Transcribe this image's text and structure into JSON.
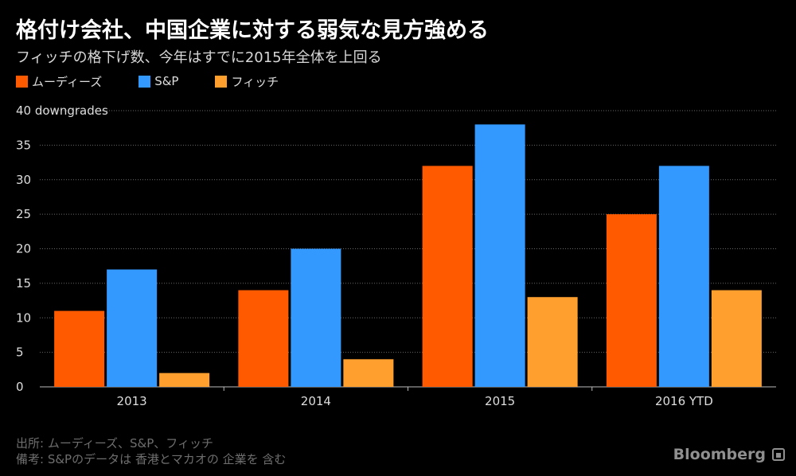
{
  "header": {
    "title": "格付け会社、中国企業に対する弱気な見方強める",
    "subtitle": "フィッチの格下げ数、今年はすでに2015年全体を上回る"
  },
  "legend": [
    {
      "label": "ムーディーズ",
      "color": "#ff5a00"
    },
    {
      "label": "S&P",
      "color": "#3399ff"
    },
    {
      "label": "フィッチ",
      "color": "#ff9f2e"
    }
  ],
  "chart_data": {
    "type": "bar",
    "title": "格付け会社、中国企業に対する弱気な見方強める",
    "subtitle": "フィッチの格下げ数、今年はすでに2015年全体を上回る",
    "categories": [
      "2013",
      "2014",
      "2015",
      "2016 YTD"
    ],
    "series": [
      {
        "name": "ムーディーズ",
        "color": "#ff5a00",
        "values": [
          11,
          14,
          32,
          25
        ]
      },
      {
        "name": "S&P",
        "color": "#3399ff",
        "values": [
          17,
          20,
          38,
          32
        ]
      },
      {
        "name": "フィッチ",
        "color": "#ff9f2e",
        "values": [
          2,
          4,
          13,
          14
        ]
      }
    ],
    "ylim": [
      0,
      40
    ],
    "yticks": [
      0,
      5,
      10,
      15,
      20,
      25,
      30,
      35,
      40
    ],
    "ytick_labels": [
      "0",
      "5",
      "10",
      "15",
      "20",
      "25",
      "30",
      "35",
      "40 downgrades"
    ],
    "xlabel": "",
    "ylabel": "",
    "grid": true,
    "legend_position": "top-left"
  },
  "footer": {
    "source": "出所: ムーディーズ、S&P、フィッチ",
    "note": "備考: S&Pのデータは 香港とマカオの 企業を 含む",
    "brand": "Bloomberg"
  }
}
